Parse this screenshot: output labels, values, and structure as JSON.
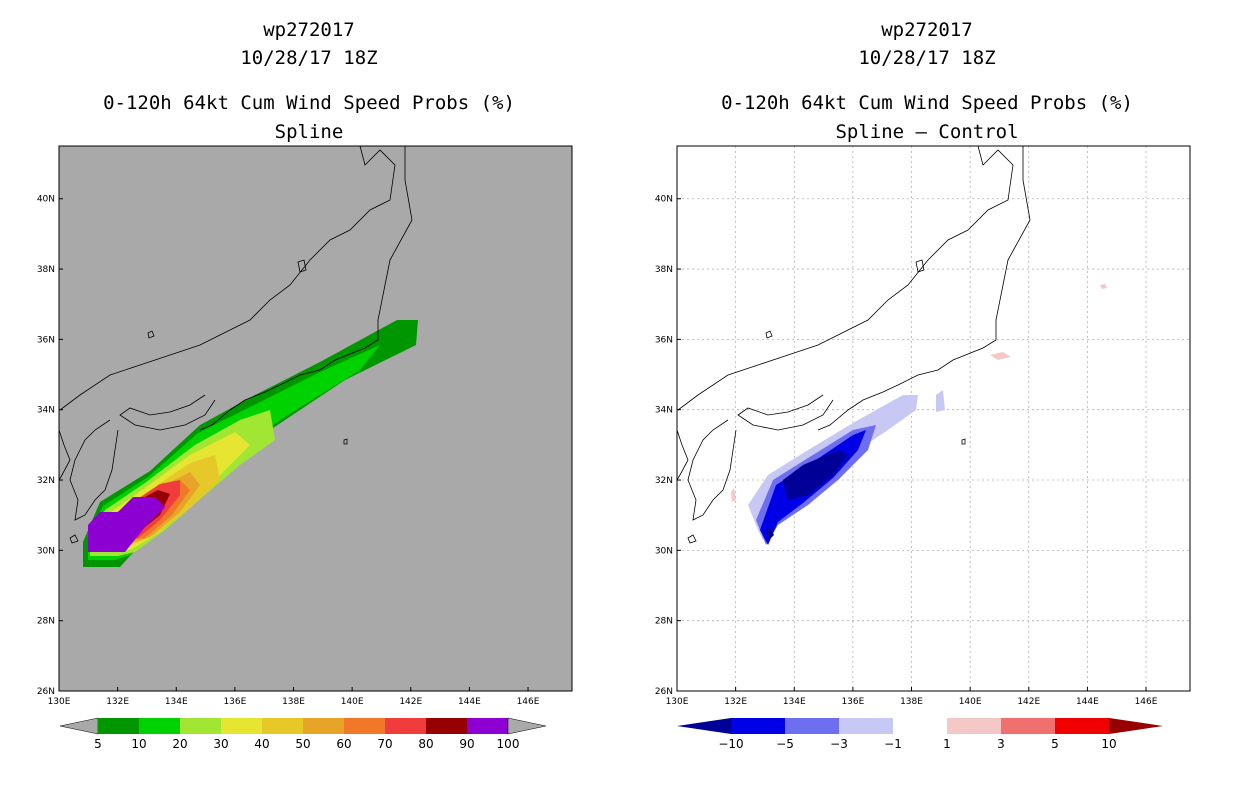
{
  "left_panel": {
    "storm_id": "wp272017",
    "datetime": "10/28/17 18Z",
    "product": "0-120h 64kt Cum Wind Speed Probs (%)",
    "subtitle": "Spline",
    "background": "#a9a9a9",
    "colorbar": {
      "labels": [
        "5",
        "10",
        "20",
        "30",
        "40",
        "50",
        "60",
        "70",
        "80",
        "90",
        "100"
      ],
      "colors": [
        "#009600",
        "#00d200",
        "#a0e632",
        "#e6e632",
        "#e6c828",
        "#e6a528",
        "#f07828",
        "#f03c3c",
        "#960000",
        "#8c00d2"
      ],
      "end_color": "#a9a9a9"
    }
  },
  "right_panel": {
    "storm_id": "wp272017",
    "datetime": "10/28/17 18Z",
    "product": "0-120h 64kt Cum Wind Speed Probs (%)",
    "subtitle": "Spline – Control",
    "background": "#ffffff",
    "colorbar": {
      "labels": [
        "−10",
        "−5",
        "−3",
        "−1",
        "1",
        "3",
        "5",
        "10"
      ],
      "colors": [
        "#0000e6",
        "#6e6ef0",
        "#c8c8f5",
        "#ffffff",
        "#f5c8c8",
        "#f07070",
        "#f00000"
      ],
      "low_end_color": "#000096",
      "high_end_color": "#960000"
    }
  },
  "axes": {
    "lon_labels": [
      "130E",
      "132E",
      "134E",
      "136E",
      "138E",
      "140E",
      "142E",
      "144E",
      "146E"
    ],
    "lat_labels": [
      "26N",
      "28N",
      "30N",
      "32N",
      "34N",
      "36N",
      "38N",
      "40N"
    ],
    "lon_range": [
      130,
      147.5
    ],
    "lat_range": [
      26,
      41.5
    ]
  }
}
